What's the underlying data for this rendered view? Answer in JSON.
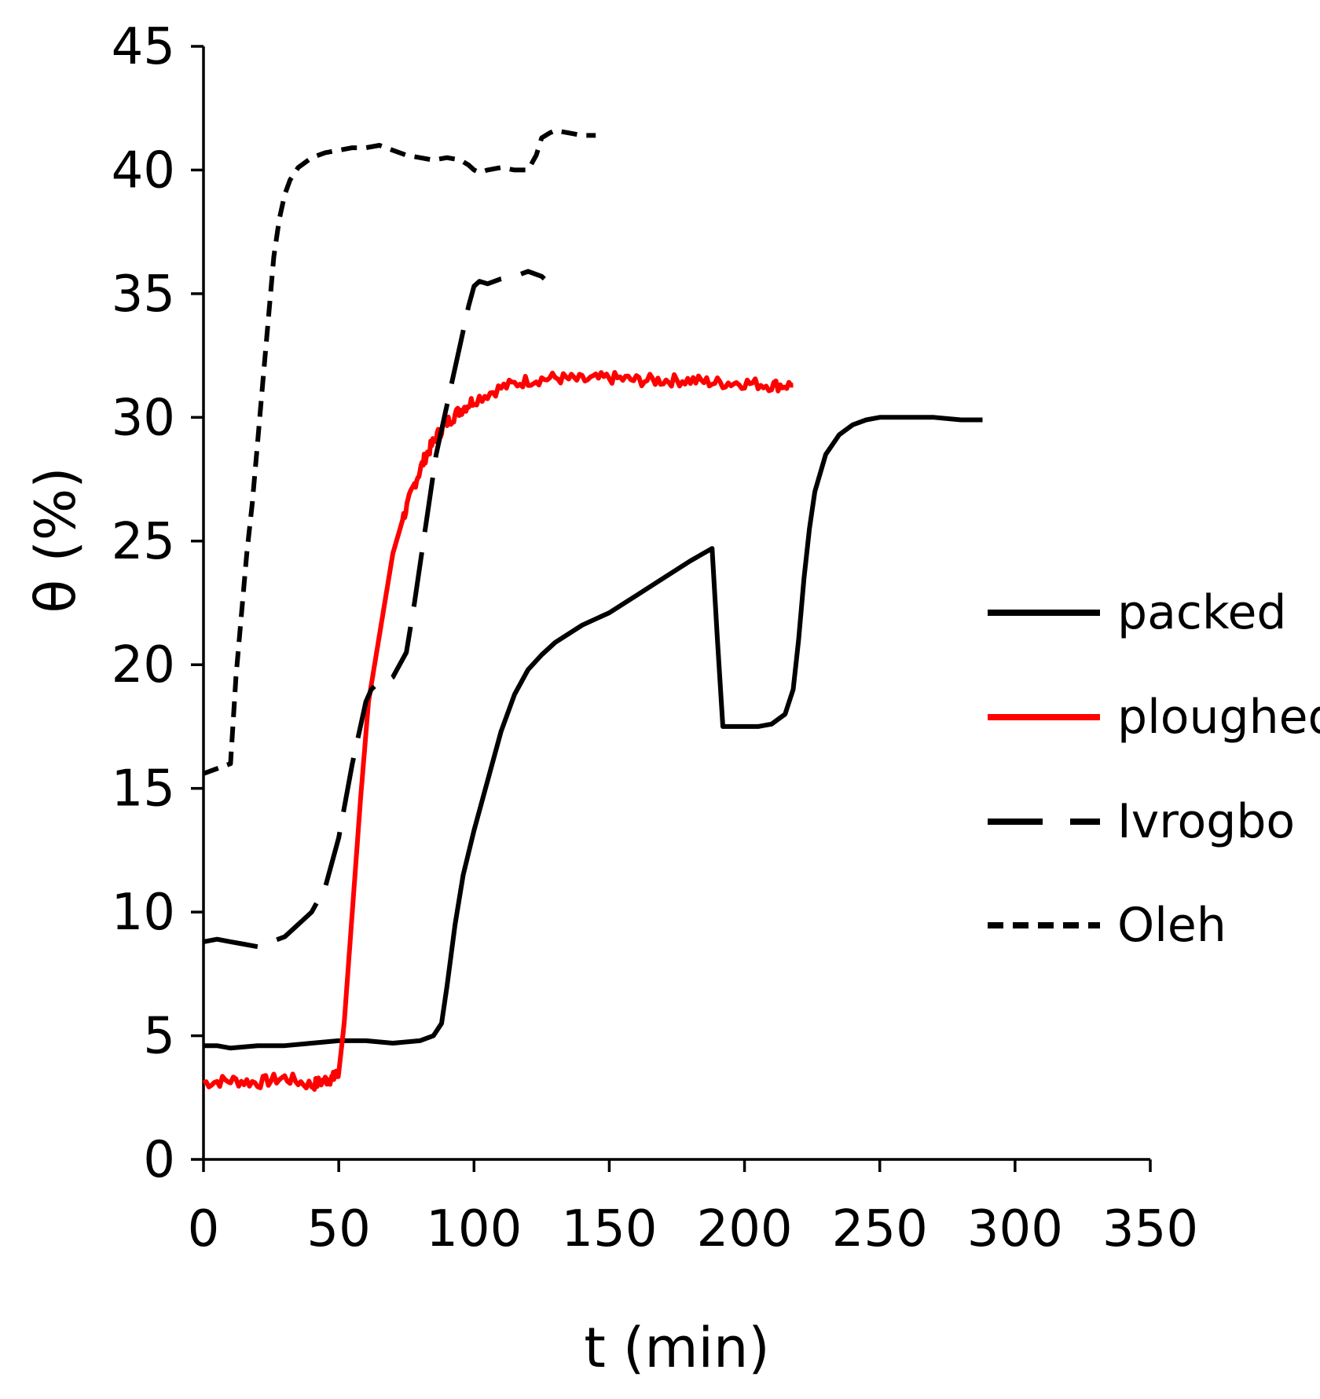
{
  "chart_data": {
    "type": "line",
    "title": "",
    "xlabel": "t (min)",
    "ylabel": "θ (%)",
    "xlim": [
      0,
      350
    ],
    "ylim": [
      0,
      45
    ],
    "xticks": [
      0,
      50,
      100,
      150,
      200,
      250,
      300,
      350
    ],
    "yticks": [
      0,
      5,
      10,
      15,
      20,
      25,
      30,
      35,
      40,
      45
    ],
    "grid": false,
    "legend_position": "right",
    "series": [
      {
        "name": "packed",
        "color": "#000000",
        "style": "solid",
        "x": [
          0,
          5,
          10,
          20,
          30,
          40,
          50,
          60,
          70,
          80,
          85,
          88,
          90,
          93,
          96,
          100,
          105,
          110,
          115,
          120,
          125,
          130,
          140,
          150,
          160,
          170,
          180,
          188,
          190,
          192,
          200,
          205,
          210,
          215,
          218,
          220,
          222,
          224,
          226,
          230,
          235,
          240,
          245,
          250,
          260,
          270,
          280,
          288
        ],
        "values": [
          4.6,
          4.6,
          4.5,
          4.6,
          4.6,
          4.7,
          4.8,
          4.8,
          4.7,
          4.8,
          5.0,
          5.5,
          7.0,
          9.5,
          11.5,
          13.3,
          15.3,
          17.3,
          18.8,
          19.8,
          20.4,
          20.9,
          21.6,
          22.1,
          22.8,
          23.5,
          24.2,
          24.7,
          21.0,
          17.5,
          17.5,
          17.5,
          17.6,
          18.0,
          19.0,
          21.0,
          23.5,
          25.5,
          27.0,
          28.5,
          29.3,
          29.7,
          29.9,
          30.0,
          30.0,
          30.0,
          29.9,
          29.9
        ]
      },
      {
        "name": "ploughed",
        "color": "#ff0000",
        "style": "solid",
        "x": [
          0,
          10,
          20,
          30,
          40,
          45,
          48,
          50,
          52,
          55,
          58,
          61,
          64,
          67,
          70,
          74,
          78,
          82,
          86,
          90,
          95,
          100,
          110,
          120,
          130,
          140,
          150,
          160,
          170,
          180,
          190,
          200,
          210,
          218
        ],
        "values": [
          3.1,
          3.2,
          3.1,
          3.3,
          3.0,
          3.2,
          3.3,
          3.5,
          5.5,
          10.0,
          14.5,
          18.5,
          20.5,
          22.5,
          24.5,
          26.0,
          27.3,
          28.4,
          29.2,
          29.8,
          30.3,
          30.7,
          31.2,
          31.5,
          31.6,
          31.5,
          31.6,
          31.5,
          31.5,
          31.5,
          31.4,
          31.4,
          31.3,
          31.3
        ],
        "noise": 0.25
      },
      {
        "name": "Ivrogbo",
        "color": "#000000",
        "style": "long-dash",
        "x": [
          0,
          5,
          10,
          15,
          20,
          25,
          30,
          35,
          40,
          45,
          50,
          55,
          60,
          62,
          64,
          66,
          70,
          75,
          78,
          82,
          86,
          88,
          90,
          92,
          95,
          98,
          100,
          102,
          105,
          110,
          115,
          120,
          125,
          126
        ],
        "values": [
          8.8,
          8.9,
          8.8,
          8.7,
          8.6,
          8.8,
          9.0,
          9.5,
          10.0,
          11.0,
          13.0,
          16.0,
          18.5,
          19.0,
          19.2,
          19.2,
          19.5,
          20.5,
          22.5,
          25.5,
          28.5,
          29.5,
          30.5,
          31.5,
          33.0,
          34.5,
          35.3,
          35.5,
          35.4,
          35.6,
          35.7,
          35.9,
          35.7,
          35.6
        ]
      },
      {
        "name": "Oleh",
        "color": "#000000",
        "style": "short-dash",
        "x": [
          0,
          5,
          10,
          12,
          14,
          16,
          18,
          20,
          22,
          24,
          26,
          28,
          30,
          32,
          35,
          40,
          45,
          50,
          55,
          60,
          65,
          70,
          75,
          80,
          85,
          90,
          95,
          98,
          100,
          102,
          105,
          110,
          115,
          120,
          123,
          125,
          128,
          130,
          135,
          140,
          145
        ],
        "values": [
          15.6,
          15.8,
          16.0,
          19.5,
          22.0,
          24.5,
          26.5,
          29.0,
          31.5,
          34.0,
          36.5,
          38.0,
          39.0,
          39.6,
          40.1,
          40.5,
          40.7,
          40.8,
          40.9,
          40.9,
          41.0,
          40.8,
          40.6,
          40.5,
          40.4,
          40.5,
          40.4,
          40.2,
          40.0,
          39.9,
          40.0,
          40.1,
          40.0,
          40.0,
          40.6,
          41.3,
          41.5,
          41.6,
          41.5,
          41.4,
          41.4
        ]
      }
    ]
  }
}
